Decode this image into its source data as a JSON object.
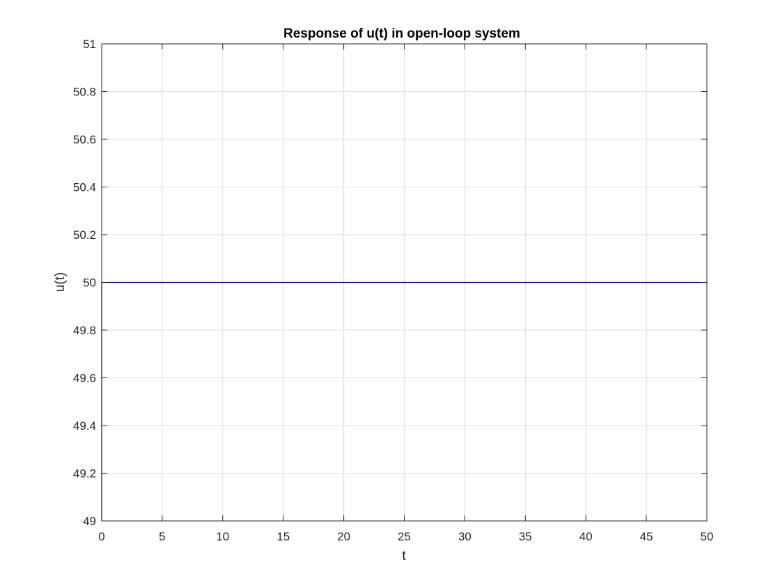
{
  "chart_data": {
    "type": "line",
    "title": "Response of u(t) in open-loop system",
    "xlabel": "t",
    "ylabel": "u(t)",
    "xlim": [
      0,
      50
    ],
    "ylim": [
      49,
      51
    ],
    "xticks": [
      "0",
      "5",
      "10",
      "15",
      "20",
      "25",
      "30",
      "35",
      "40",
      "45",
      "50"
    ],
    "yticks": [
      "49",
      "49.2",
      "49.4",
      "49.6",
      "49.8",
      "50",
      "50.2",
      "50.4",
      "50.6",
      "50.8",
      "51"
    ],
    "grid": true,
    "series": [
      {
        "color": "#000080",
        "x": [
          0,
          0,
          50
        ],
        "y": [
          49,
          50,
          50
        ]
      }
    ]
  }
}
